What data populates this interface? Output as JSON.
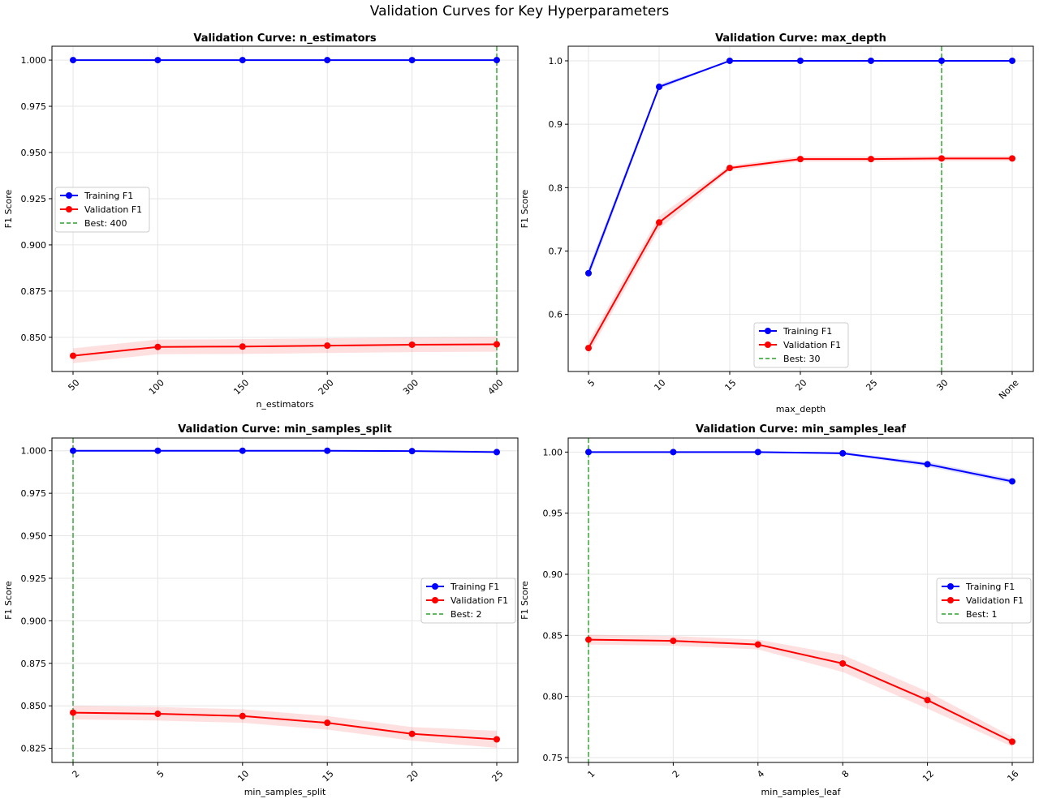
{
  "figure": {
    "title": "Validation Curves for Key Hyperparameters"
  },
  "colors": {
    "train": "#0000ff",
    "val": "#ff0000",
    "val_band": "#ff0000",
    "best": "#2ca02c",
    "grid": "#e6e6e6"
  },
  "chart_data": [
    {
      "type": "line",
      "title": "Validation Curve: n_estimators",
      "xlabel": "n_estimators",
      "ylabel": "F1 Score",
      "categories": [
        "50",
        "100",
        "150",
        "200",
        "300",
        "400"
      ],
      "ylim": [
        0.8315,
        1.0075
      ],
      "yticks": [
        0.85,
        0.875,
        0.9,
        0.925,
        0.95,
        0.975,
        1.0
      ],
      "ytick_labels": [
        "0.850",
        "0.875",
        "0.900",
        "0.925",
        "0.950",
        "0.975",
        "1.000"
      ],
      "series": [
        {
          "name": "Training F1",
          "values": [
            1.0,
            1.0,
            1.0,
            1.0,
            1.0,
            1.0
          ],
          "std": [
            0,
            0,
            0,
            0,
            0,
            0
          ]
        },
        {
          "name": "Validation F1",
          "values": [
            0.84,
            0.8448,
            0.845,
            0.8455,
            0.846,
            0.8462
          ],
          "std": [
            0.004,
            0.004,
            0.004,
            0.004,
            0.004,
            0.004
          ]
        }
      ],
      "best": {
        "index": 5,
        "label": "Best: 400"
      },
      "legend_loc": "center-left",
      "grid": true
    },
    {
      "type": "line",
      "title": "Validation Curve: max_depth",
      "xlabel": "max_depth",
      "ylabel": "F1 Score",
      "categories": [
        "5",
        "10",
        "15",
        "20",
        "25",
        "30",
        "None"
      ],
      "ylim": [
        0.51,
        1.023
      ],
      "yticks": [
        0.6,
        0.7,
        0.8,
        0.9,
        1.0
      ],
      "ytick_labels": [
        "0.6",
        "0.7",
        "0.8",
        "0.9",
        "1.0"
      ],
      "series": [
        {
          "name": "Training F1",
          "values": [
            0.665,
            0.959,
            1.0,
            1.0,
            1.0,
            1.0,
            1.0
          ],
          "std": [
            0.008,
            0.004,
            0,
            0,
            0,
            0,
            0
          ]
        },
        {
          "name": "Validation F1",
          "values": [
            0.547,
            0.745,
            0.831,
            0.845,
            0.845,
            0.846,
            0.846
          ],
          "std": [
            0.01,
            0.01,
            0.004,
            0.004,
            0.004,
            0.004,
            0.004
          ]
        }
      ],
      "best": {
        "index": 5,
        "label": "Best: 30"
      },
      "legend_loc": "lower-center",
      "grid": true
    },
    {
      "type": "line",
      "title": "Validation Curve: min_samples_split",
      "xlabel": "min_samples_split",
      "ylabel": "F1 Score",
      "categories": [
        "2",
        "5",
        "10",
        "15",
        "20",
        "25"
      ],
      "ylim": [
        0.8167,
        1.0075
      ],
      "yticks": [
        0.825,
        0.85,
        0.875,
        0.9,
        0.925,
        0.95,
        0.975,
        1.0
      ],
      "ytick_labels": [
        "0.825",
        "0.850",
        "0.875",
        "0.900",
        "0.925",
        "0.950",
        "0.975",
        "1.000"
      ],
      "series": [
        {
          "name": "Training F1",
          "values": [
            1.0,
            1.0,
            1.0,
            1.0,
            0.9998,
            0.9992
          ],
          "std": [
            0,
            0,
            0,
            0,
            0,
            0
          ]
        },
        {
          "name": "Validation F1",
          "values": [
            0.846,
            0.8453,
            0.844,
            0.84,
            0.8335,
            0.8303
          ],
          "std": [
            0.004,
            0.004,
            0.004,
            0.004,
            0.004,
            0.005
          ]
        }
      ],
      "best": {
        "index": 0,
        "label": "Best: 2"
      },
      "legend_loc": "center-right",
      "grid": true
    },
    {
      "type": "line",
      "title": "Validation Curve: min_samples_leaf",
      "xlabel": "min_samples_leaf",
      "ylabel": "F1 Score",
      "categories": [
        "1",
        "2",
        "4",
        "8",
        "12",
        "16"
      ],
      "ylim": [
        0.746,
        1.0115
      ],
      "yticks": [
        0.75,
        0.8,
        0.85,
        0.9,
        0.95,
        1.0
      ],
      "ytick_labels": [
        "0.75",
        "0.80",
        "0.85",
        "0.90",
        "0.95",
        "1.00"
      ],
      "series": [
        {
          "name": "Training F1",
          "values": [
            1.0,
            1.0,
            1.0,
            0.999,
            0.99,
            0.976
          ],
          "std": [
            0,
            0,
            0,
            0.001,
            0.002,
            0.002
          ]
        },
        {
          "name": "Validation F1",
          "values": [
            0.8465,
            0.8455,
            0.8425,
            0.827,
            0.797,
            0.763
          ],
          "std": [
            0.004,
            0.004,
            0.004,
            0.007,
            0.007,
            0.004
          ]
        }
      ],
      "best": {
        "index": 0,
        "label": "Best: 1"
      },
      "legend_loc": "center-right",
      "grid": true
    }
  ]
}
